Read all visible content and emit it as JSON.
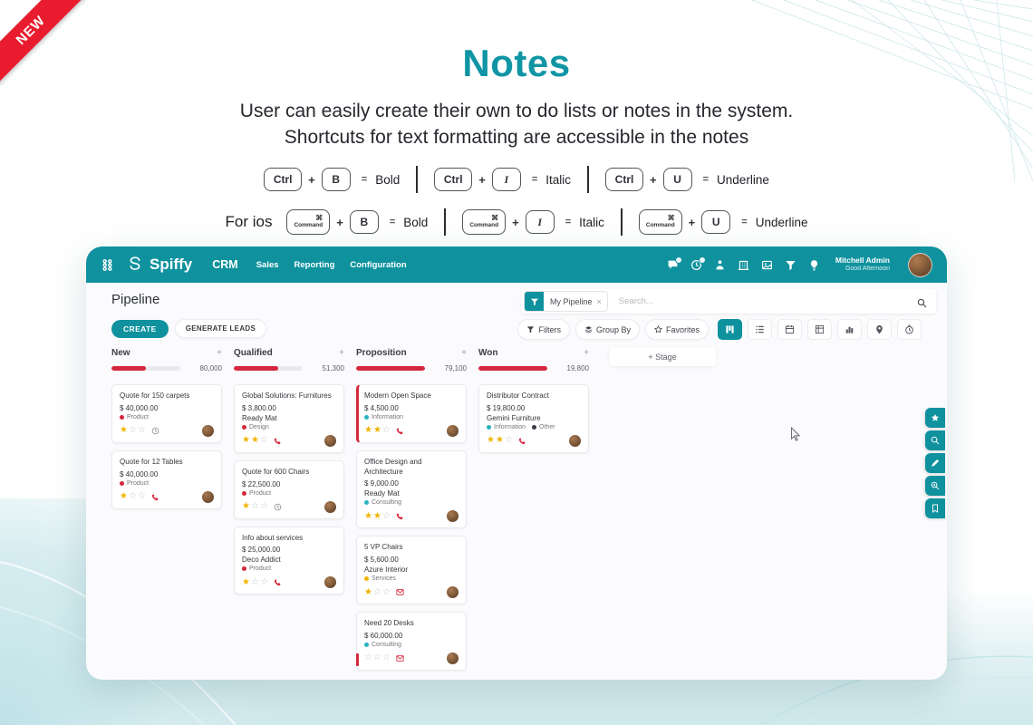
{
  "colors": {
    "teal": "#0f929e",
    "ribbon_red": "#e81c2e",
    "bar_red": "#d5283c",
    "star_yellow": "#f0b400",
    "title_teal": "#1095a5"
  },
  "ribbon": {
    "label": "NEW"
  },
  "hero": {
    "title": "Notes",
    "subtitle_line1": "User can easily create their own to do lists or notes in the system.",
    "subtitle_line2": "Shortcuts for text formatting are accessible in the notes"
  },
  "shortcuts": {
    "rows": [
      {
        "prefix": "",
        "modifier": "Ctrl",
        "modifier_style": "ctrl",
        "items": [
          {
            "key": "B",
            "result": "Bold"
          },
          {
            "key": "I",
            "result": "Italic"
          },
          {
            "key": "U",
            "result": "Underline"
          }
        ]
      },
      {
        "prefix": "For ios",
        "modifier": "Command",
        "modifier_symbol": "⌘",
        "modifier_style": "command",
        "items": [
          {
            "key": "B",
            "result": "Bold"
          },
          {
            "key": "I",
            "result": "Italic"
          },
          {
            "key": "U",
            "result": "Underline"
          }
        ]
      }
    ],
    "plus_sign": "+",
    "equals_sign": "="
  },
  "app": {
    "navbar": {
      "apps_icon": "apps-grid-icon",
      "logo_icon": "spiffy-logo-icon",
      "brand": "Spiffy",
      "module": "CRM",
      "menu": [
        "Sales",
        "Reporting",
        "Configuration"
      ],
      "icons": [
        {
          "name": "chat-icon",
          "badge": true
        },
        {
          "name": "clock-icon",
          "badge": true
        },
        {
          "name": "presence-icon",
          "badge": false
        },
        {
          "name": "building-icon",
          "badge": false
        },
        {
          "name": "image-icon",
          "badge": false
        },
        {
          "name": "filter-icon",
          "badge": false
        },
        {
          "name": "bulb-icon",
          "badge": false
        }
      ],
      "user_name": "Mitchell Admin",
      "user_greeting": "Good Afternoon"
    },
    "page_title": "Pipeline",
    "actions": {
      "create": "CREATE",
      "generate_leads": "GENERATE LEADS"
    },
    "search": {
      "facet_icon": "filter-icon",
      "facet": "My Pipeline",
      "facet_remove": "×",
      "placeholder": "Search...",
      "icon": "search-icon"
    },
    "toolbar": {
      "filters": "Filters",
      "group_by": "Group By",
      "favorites": "Favorites"
    },
    "views": [
      {
        "name": "kanban",
        "active": true
      },
      {
        "name": "list",
        "active": false
      },
      {
        "name": "calendar",
        "active": false
      },
      {
        "name": "pivot",
        "active": false
      },
      {
        "name": "graph",
        "active": false
      },
      {
        "name": "map",
        "active": false
      },
      {
        "name": "activity",
        "active": false
      }
    ],
    "stage_button": "+ Stage",
    "add_column_sign": "+",
    "columns": [
      {
        "name": "New",
        "total": "80,000",
        "progress": 50,
        "cards": [
          {
            "title": "Quote for 150 carpets",
            "amount": "$ 40,000.00",
            "company": "",
            "tags": [
              {
                "label": "Product",
                "color": "#d5283c"
              }
            ],
            "stars": 1,
            "activity": "clock",
            "stripe": "none"
          },
          {
            "title": "Quote for 12 Tables",
            "amount": "$ 40,000.00",
            "company": "",
            "tags": [
              {
                "label": "Product",
                "color": "#d5283c"
              }
            ],
            "stars": 1,
            "activity": "phone",
            "stripe": "none"
          }
        ]
      },
      {
        "name": "Qualified",
        "total": "51,300",
        "progress": 65,
        "cards": [
          {
            "title": "Global Solutions: Furnitures",
            "amount": "$ 3,800.00",
            "company": "Ready Mat",
            "tags": [
              {
                "label": "Design",
                "color": "#d5283c"
              }
            ],
            "stars": 2,
            "activity": "phone",
            "stripe": "none"
          },
          {
            "title": "Quote for 600 Chairs",
            "amount": "$ 22,500.00",
            "company": "",
            "tags": [
              {
                "label": "Product",
                "color": "#d5283c"
              }
            ],
            "stars": 1,
            "activity": "clock",
            "stripe": "none"
          },
          {
            "title": "Info about services",
            "amount": "$ 25,000.00",
            "company": "Deco Addict",
            "tags": [
              {
                "label": "Product",
                "color": "#d5283c"
              }
            ],
            "stars": 1,
            "activity": "phone",
            "stripe": "none"
          }
        ]
      },
      {
        "name": "Proposition",
        "total": "79,100",
        "progress": 100,
        "cards": [
          {
            "title": "Modern Open Space",
            "amount": "$ 4,500.00",
            "company": "",
            "tags": [
              {
                "label": "Information",
                "color": "#29b3c2"
              }
            ],
            "stars": 2,
            "activity": "phone",
            "stripe": "full"
          },
          {
            "title": "Office Design and Architecture",
            "amount": "$ 9,000.00",
            "company": "Ready Mat",
            "tags": [
              {
                "label": "Consulting",
                "color": "#29b3c2"
              }
            ],
            "stars": 2,
            "activity": "phone",
            "stripe": "none"
          },
          {
            "title": "5 VP Chairs",
            "amount": "$ 5,600.00",
            "company": "Azure Interior",
            "tags": [
              {
                "label": "Services",
                "color": "#f0b400"
              }
            ],
            "stars": 1,
            "activity": "mail",
            "stripe": "none"
          },
          {
            "title": "Need 20 Desks",
            "amount": "$ 60,000.00",
            "company": "",
            "tags": [
              {
                "label": "Consulting",
                "color": "#29b3c2"
              }
            ],
            "stars": 0,
            "activity": "mail",
            "stripe": "bottom"
          }
        ]
      },
      {
        "name": "Won",
        "total": "19,800",
        "progress": 100,
        "cards": [
          {
            "title": "Distributor Contract",
            "amount": "$ 19,800.00",
            "company": "Gemini Furniture",
            "tags": [
              {
                "label": "Information",
                "color": "#29b3c2"
              },
              {
                "label": "Other",
                "color": "#3b3b46"
              }
            ],
            "stars": 2,
            "activity": "phone",
            "stripe": "none"
          }
        ]
      }
    ],
    "side_buttons": [
      "star",
      "search",
      "pencil",
      "zoom",
      "bookmark"
    ]
  }
}
